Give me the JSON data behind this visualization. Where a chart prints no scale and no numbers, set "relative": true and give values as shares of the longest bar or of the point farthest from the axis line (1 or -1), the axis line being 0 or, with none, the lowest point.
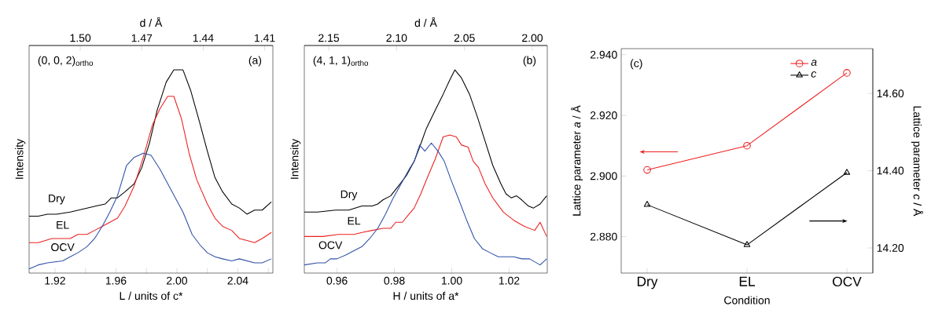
{
  "chart_data": [
    {
      "type": "line",
      "relative": true,
      "xlabel": "L / units of c*",
      "ylabel": "Intensity",
      "x2label": "d / Å",
      "xlim": [
        1.903,
        2.063
      ],
      "xticks": [
        1.92,
        {
          "value": 1.94,
          "label": null
        },
        1.96,
        {
          "value": 1.98,
          "label": null
        },
        {
          "value": 2.0,
          "label": "2.00"
        },
        {
          "value": 2.02,
          "label": null
        },
        2.04,
        {
          "value": 2.06,
          "label": null
        }
      ],
      "x2lim": [
        1.525,
        1.406
      ],
      "x2ticks": [
        {
          "value": 1.5,
          "label": "1.50"
        },
        1.47,
        1.44,
        1.41
      ],
      "annotations": [
        "(0, 0, 2)$_{ortho}$",
        "(a)"
      ],
      "series": [
        {
          "name": "Dry",
          "color": "#000000",
          "x": [
            1.903,
            1.909,
            1.915,
            1.921,
            1.93,
            1.941,
            1.947,
            1.953,
            1.957,
            1.961,
            1.966,
            1.972,
            1.977,
            1.982,
            1.987,
            1.993,
            1.998,
            2.004,
            2.009,
            2.015,
            2.02,
            2.025,
            2.03,
            2.036,
            2.041,
            2.046,
            2.051,
            2.056,
            2.062
          ],
          "values": [
            0.28,
            0.28,
            0.29,
            0.29,
            0.3,
            0.32,
            0.33,
            0.34,
            0.37,
            0.37,
            0.4,
            0.44,
            0.52,
            0.64,
            0.8,
            0.94,
            1.0,
            1.0,
            0.9,
            0.74,
            0.6,
            0.47,
            0.4,
            0.34,
            0.32,
            0.29,
            0.31,
            0.31,
            0.35
          ]
        },
        {
          "name": "EL",
          "color": "#ee2020",
          "x": [
            1.903,
            1.909,
            1.918,
            1.925,
            1.93,
            1.935,
            1.941,
            1.946,
            1.951,
            1.956,
            1.961,
            1.966,
            1.972,
            1.978,
            1.984,
            1.989,
            1.994,
            1.998,
            2.003,
            2.008,
            2.013,
            2.02,
            2.025,
            2.03,
            2.036,
            2.041,
            2.046,
            2.051,
            2.056,
            2.062
          ],
          "values": [
            0.15,
            0.15,
            0.17,
            0.17,
            0.17,
            0.19,
            0.19,
            0.21,
            0.23,
            0.25,
            0.27,
            0.33,
            0.43,
            0.57,
            0.73,
            0.81,
            0.87,
            0.87,
            0.76,
            0.59,
            0.46,
            0.34,
            0.27,
            0.23,
            0.21,
            0.17,
            0.16,
            0.15,
            0.17,
            0.2
          ]
        },
        {
          "name": "OCV",
          "color": "#3050a8",
          "x": [
            1.903,
            1.909,
            1.915,
            1.925,
            1.93,
            1.935,
            1.941,
            1.946,
            1.951,
            1.956,
            1.961,
            1.967,
            1.972,
            1.978,
            1.983,
            1.989,
            1.994,
            1.999,
            2.004,
            2.01,
            2.015,
            2.02,
            2.025,
            2.03,
            2.036,
            2.041,
            2.046,
            2.051,
            2.056,
            2.062
          ],
          "values": [
            0.02,
            0.04,
            0.05,
            0.06,
            0.08,
            0.1,
            0.13,
            0.17,
            0.23,
            0.3,
            0.38,
            0.53,
            0.57,
            0.59,
            0.58,
            0.51,
            0.44,
            0.37,
            0.3,
            0.19,
            0.14,
            0.1,
            0.08,
            0.07,
            0.06,
            0.07,
            0.06,
            0.05,
            0.05,
            0.07
          ]
        }
      ]
    },
    {
      "type": "line",
      "relative": true,
      "xlabel": "H / units of a*",
      "ylabel": "Intensity",
      "x2label": "d / Å",
      "xlim": [
        0.9486,
        1.0333
      ],
      "xticks": [
        0.96,
        0.98,
        {
          "value": 1.0,
          "label": "1.00"
        },
        1.02
      ],
      "x2lim": [
        2.168,
        1.989
      ],
      "x2ticks": [
        2.15,
        {
          "value": 2.1,
          "label": "2.10"
        },
        2.05,
        {
          "value": 2.0,
          "label": "2.00"
        }
      ],
      "annotations": [
        "(4, 1, 1)$_{ortho}$",
        "(b)"
      ],
      "series": [
        {
          "name": "Dry",
          "color": "#000000",
          "x": [
            0.9486,
            0.9532,
            0.9595,
            0.9641,
            0.9687,
            0.9723,
            0.9742,
            0.976,
            0.9787,
            0.9815,
            0.9842,
            0.9869,
            0.9888,
            0.9911,
            0.9942,
            0.997,
            0.9993,
            1.0011,
            1.0034,
            1.0062,
            1.0089,
            1.0116,
            1.0143,
            1.0171,
            1.0189,
            1.0207,
            1.0226,
            1.0244,
            1.0267,
            1.0285,
            1.0308,
            1.0331
          ],
          "values": [
            0.3,
            0.3,
            0.31,
            0.31,
            0.33,
            0.33,
            0.34,
            0.36,
            0.38,
            0.43,
            0.48,
            0.55,
            0.62,
            0.71,
            0.8,
            0.88,
            0.95,
            1.0,
            0.96,
            0.88,
            0.77,
            0.65,
            0.53,
            0.44,
            0.39,
            0.37,
            0.38,
            0.36,
            0.33,
            0.32,
            0.34,
            0.38
          ]
        },
        {
          "name": "EL",
          "color": "#ee2020",
          "x": [
            0.9486,
            0.955,
            0.9605,
            0.9659,
            0.9687,
            0.9723,
            0.976,
            0.9787,
            0.9805,
            0.9828,
            0.9851,
            0.9869,
            0.9892,
            0.9915,
            0.9942,
            0.997,
            0.9993,
            1.0016,
            1.0034,
            1.0057,
            1.0075,
            1.0093,
            1.0116,
            1.0143,
            1.018,
            1.0216,
            1.0253,
            1.0289,
            1.0308,
            1.0331
          ],
          "values": [
            0.18,
            0.18,
            0.19,
            0.19,
            0.2,
            0.21,
            0.22,
            0.22,
            0.25,
            0.25,
            0.29,
            0.32,
            0.39,
            0.47,
            0.56,
            0.67,
            0.68,
            0.67,
            0.63,
            0.62,
            0.55,
            0.52,
            0.44,
            0.37,
            0.3,
            0.26,
            0.23,
            0.21,
            0.25,
            0.18
          ]
        },
        {
          "name": "OCV",
          "color": "#3050a8",
          "x": [
            0.9486,
            0.9532,
            0.9559,
            0.9577,
            0.96,
            0.9632,
            0.9659,
            0.9687,
            0.9714,
            0.9742,
            0.9769,
            0.9796,
            0.9824,
            0.9851,
            0.9869,
            0.9888,
            0.9906,
            0.9929,
            0.9952,
            0.9974,
            0.9997,
            1.0025,
            1.0052,
            1.0079,
            1.0107,
            1.0134,
            1.0162,
            1.0189,
            1.0216,
            1.0244,
            1.0271,
            1.0308,
            1.0331
          ],
          "values": [
            0.04,
            0.05,
            0.05,
            0.07,
            0.07,
            0.09,
            0.11,
            0.13,
            0.17,
            0.22,
            0.29,
            0.37,
            0.44,
            0.51,
            0.55,
            0.63,
            0.6,
            0.64,
            0.6,
            0.55,
            0.46,
            0.36,
            0.26,
            0.17,
            0.12,
            0.1,
            0.08,
            0.08,
            0.08,
            0.07,
            0.07,
            0.04,
            0.07
          ]
        }
      ]
    },
    {
      "type": "line",
      "categories": [
        "Dry",
        "EL",
        "OCV"
      ],
      "xlabel": "Condition",
      "ylabel": "Lattice parameter *a* / Å",
      "y2label": "Lattice parameter *c* / Å",
      "ylim": [
        2.868,
        2.942
      ],
      "yticks": [
        {
          "value": 2.88,
          "label": "2.880"
        },
        {
          "value": 2.9,
          "label": "2.900"
        },
        {
          "value": 2.92,
          "label": "2.920"
        },
        {
          "value": 2.94,
          "label": "2.940"
        }
      ],
      "y2lim": [
        14.135,
        14.716
      ],
      "y2ticks": [
        {
          "value": 14.2,
          "label": "14.20"
        },
        {
          "value": 14.4,
          "label": "14.40"
        },
        {
          "value": 14.6,
          "label": "14.60"
        }
      ],
      "annotations": [
        "(c)"
      ],
      "legend": "top right",
      "series": [
        {
          "name": "a",
          "color": "#ee2020",
          "marker": "circle",
          "values": [
            2.902,
            2.91,
            2.934
          ]
        },
        {
          "name": "c",
          "color": "#000000",
          "marker": "triangle",
          "axis": "y2",
          "values": [
            14.312,
            14.208,
            14.395
          ]
        }
      ]
    }
  ]
}
